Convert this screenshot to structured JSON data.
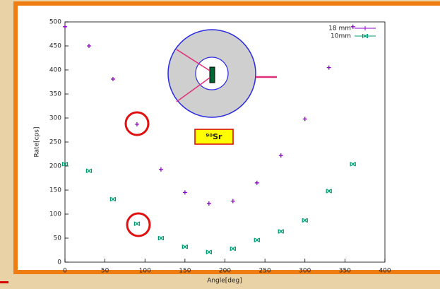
{
  "chart_data": {
    "type": "scatter",
    "xlabel": "Angle[deg]",
    "ylabel": "Rate[cps]",
    "annotation": "⁹⁰Sr",
    "x": [
      0,
      30,
      60,
      90,
      120,
      150,
      180,
      210,
      240,
      270,
      300,
      330,
      360
    ],
    "series": [
      {
        "name": "18 mm",
        "color": "#9400d3",
        "marker": "plus",
        "values": [
          490,
          450,
          381,
          287,
          193,
          145,
          122,
          127,
          165,
          222,
          298,
          405,
          490
        ]
      },
      {
        "name": "10mm",
        "color": "#009e73",
        "marker": "cross",
        "values": [
          204,
          190,
          131,
          80,
          50,
          32,
          21,
          28,
          46,
          64,
          87,
          148,
          204
        ]
      }
    ],
    "xlim": [
      0,
      400
    ],
    "ylim": [
      0,
      500
    ],
    "xticks": [
      0,
      50,
      100,
      150,
      200,
      250,
      300,
      350,
      400
    ],
    "yticks": [
      0,
      50,
      100,
      150,
      200,
      250,
      300,
      350,
      400,
      450,
      500
    ]
  }
}
